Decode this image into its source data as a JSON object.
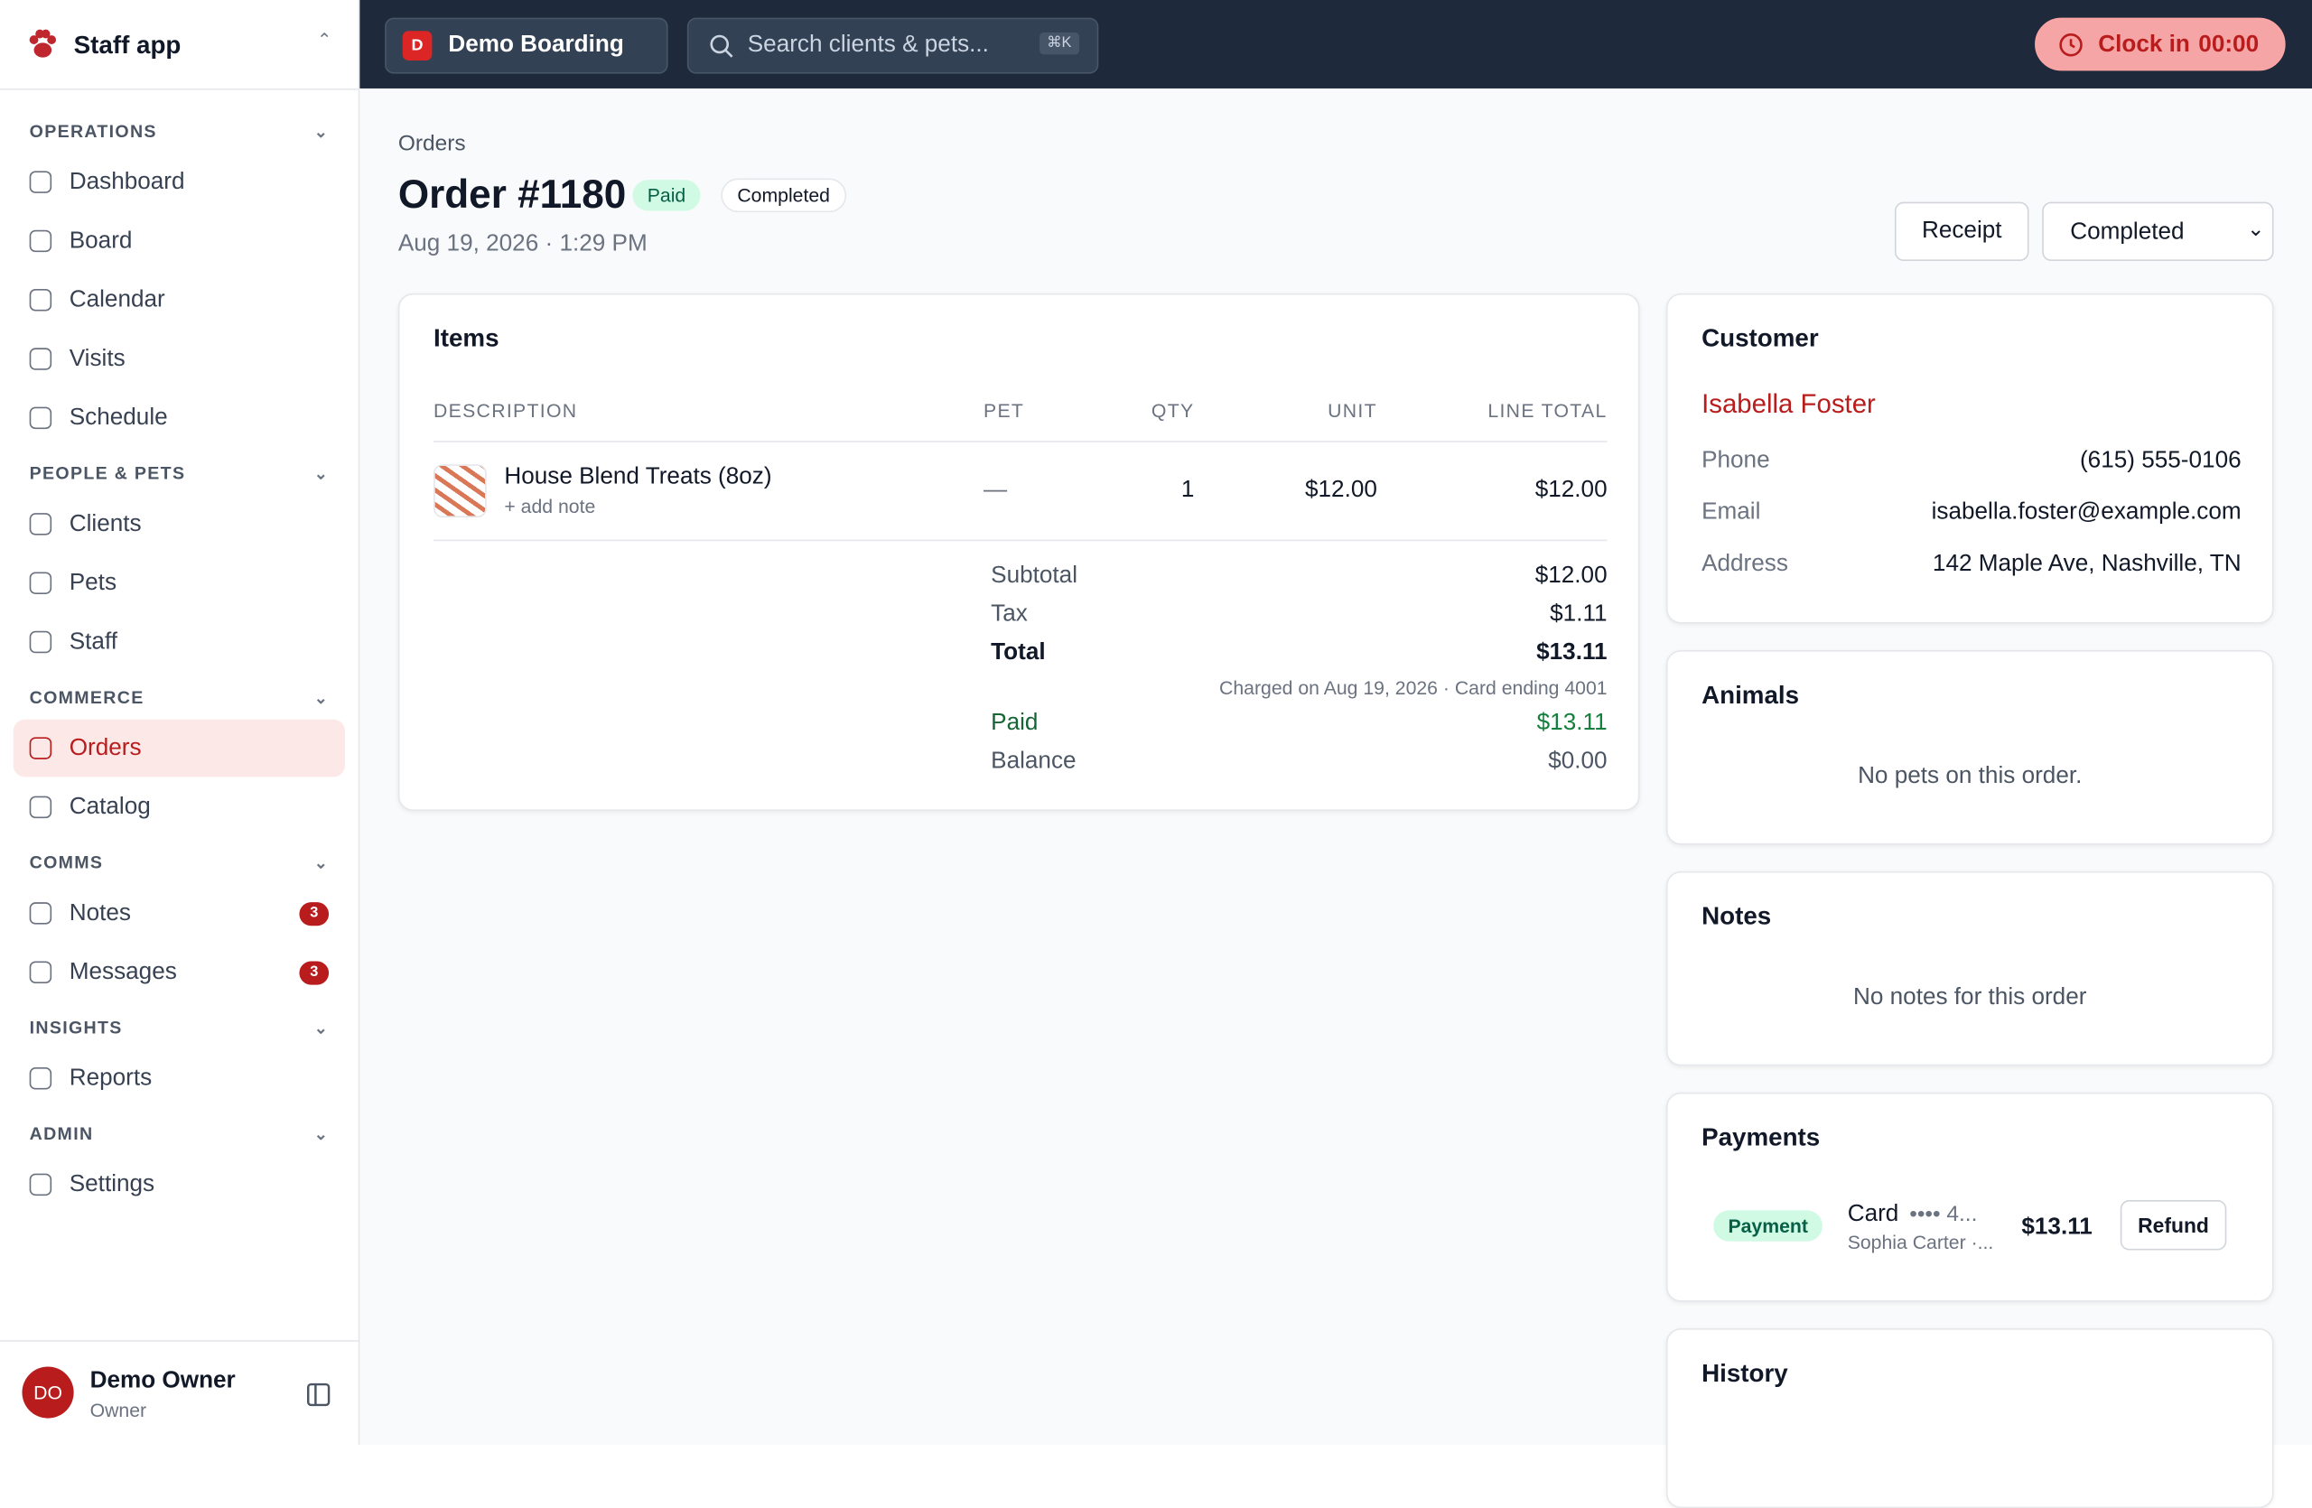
{
  "sidebar": {
    "app_name": "Staff app",
    "sections": [
      {
        "title": "OPERATIONS",
        "items": [
          {
            "label": "Dashboard"
          },
          {
            "label": "Board"
          },
          {
            "label": "Calendar"
          },
          {
            "label": "Visits"
          },
          {
            "label": "Schedule"
          }
        ]
      },
      {
        "title": "PEOPLE & PETS",
        "items": [
          {
            "label": "Clients"
          },
          {
            "label": "Pets"
          },
          {
            "label": "Staff"
          }
        ]
      },
      {
        "title": "COMMERCE",
        "items": [
          {
            "label": "Orders",
            "active": true
          },
          {
            "label": "Catalog"
          }
        ]
      },
      {
        "title": "COMMS",
        "items": [
          {
            "label": "Notes",
            "badge": 3
          },
          {
            "label": "Messages",
            "badge": 3
          }
        ]
      },
      {
        "title": "INSIGHTS",
        "items": [
          {
            "label": "Reports"
          }
        ]
      },
      {
        "title": "ADMIN",
        "items": [
          {
            "label": "Settings"
          }
        ]
      }
    ],
    "user": {
      "initials": "DO",
      "name": "Demo Owner",
      "role": "Owner"
    }
  },
  "topbar": {
    "location_initial": "D",
    "location": "Demo Boarding",
    "search_placeholder": "Search clients & pets...",
    "shortcut": "⌘K",
    "clock_label": "Clock in",
    "clock_time": "00:00"
  },
  "header": {
    "breadcrumb": "Orders",
    "title": "Order #1180",
    "badges": [
      "Paid",
      "Completed"
    ],
    "date": "Aug 19, 2026 · 1:29 PM",
    "receipt": "Receipt",
    "status": "Completed"
  },
  "items": {
    "title": "Items",
    "columns": [
      "DESCRIPTION",
      "PET",
      "QTY",
      "UNIT",
      "LINE TOTAL"
    ],
    "rows": [
      {
        "description": "House Blend Treats (8oz)",
        "note": "+ add note",
        "pet": "—",
        "qty": 1,
        "unit": "$12.00",
        "line_total": "$12.00"
      }
    ],
    "summary": [
      {
        "label": "Subtotal",
        "value": "$12.00"
      },
      {
        "label": "Tax",
        "value": "$1.11"
      },
      {
        "label": "Total",
        "value": "$13.11"
      }
    ],
    "charged": "Charged on Aug 19, 2026 · Card ending 4001",
    "paid": {
      "label": "Paid",
      "value": "$13.11"
    },
    "balance": {
      "label": "Balance",
      "value": "$0.00"
    }
  },
  "customer": {
    "title": "Customer",
    "name": "Isabella Foster",
    "fields": [
      {
        "label": "Phone",
        "value": "(615) 555-0106"
      },
      {
        "label": "Email",
        "value": "isabella.foster@example.com"
      },
      {
        "label": "Address",
        "value": "142 Maple Ave, Nashville, TN"
      }
    ]
  },
  "animals": {
    "title": "Animals",
    "empty": "No pets on this order."
  },
  "notes": {
    "title": "Notes",
    "empty": "No notes for this order"
  },
  "payments": {
    "title": "Payments",
    "entries": [
      {
        "badge": "Payment",
        "method": "Card",
        "card": "•••• 4...",
        "by": "Sophia Carter ·...",
        "amount": "$13.11",
        "action": "Refund"
      }
    ]
  },
  "history": {
    "title": "History"
  }
}
